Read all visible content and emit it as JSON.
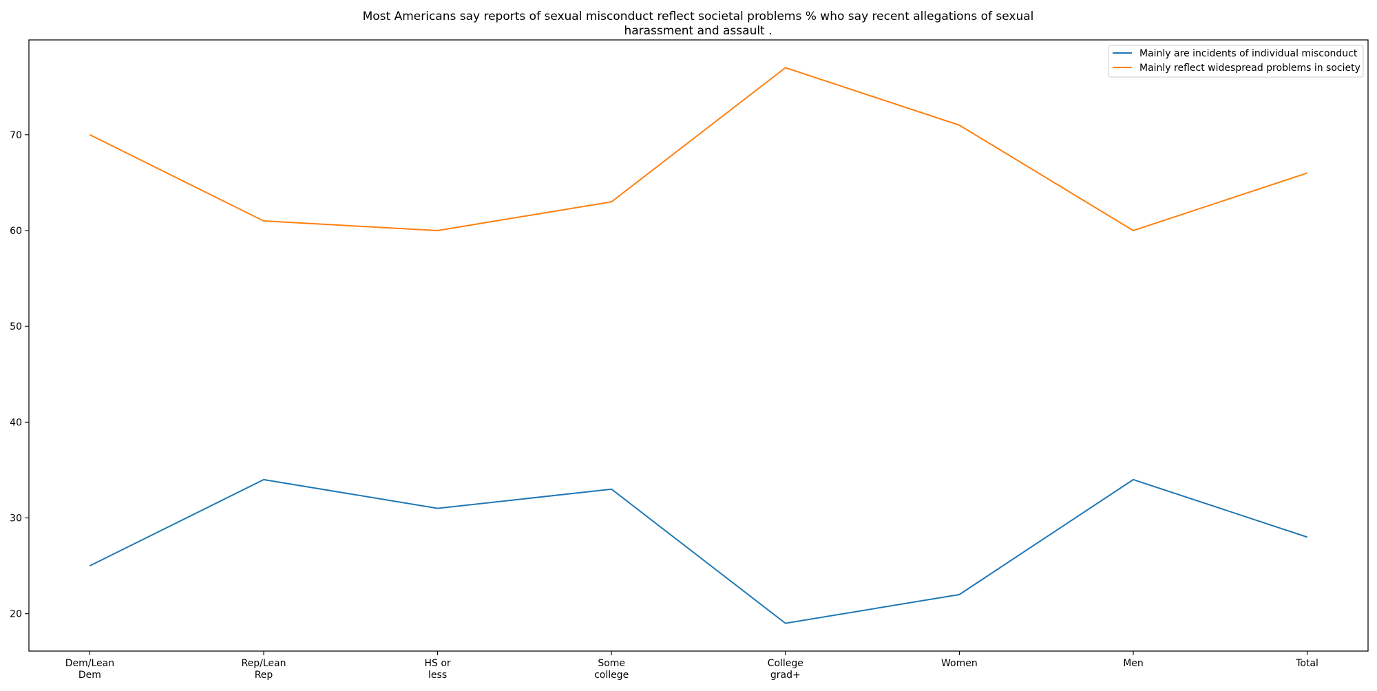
{
  "chart_data": {
    "type": "line",
    "title_lines": [
      "Most Americans say reports of sexual misconduct reflect societal problems % who say recent allegations of sexual",
      "harassment and assault ."
    ],
    "categories": [
      [
        "Dem/Lean",
        "Dem"
      ],
      [
        "Rep/Lean",
        "Rep"
      ],
      [
        "HS or",
        "less"
      ],
      [
        "Some",
        "college"
      ],
      [
        "College",
        "grad+"
      ],
      [
        "Women"
      ],
      [
        "Men"
      ],
      [
        "Total"
      ]
    ],
    "series": [
      {
        "name": "Mainly are incidents of individual misconduct",
        "color": "#1f77b4",
        "values": [
          25,
          34,
          31,
          33,
          19,
          22,
          34,
          28
        ]
      },
      {
        "name": "Mainly reflect widespread problems in society",
        "color": "#ff7f0e",
        "values": [
          70,
          61,
          60,
          63,
          77,
          71,
          60,
          66
        ]
      }
    ],
    "yticks": [
      20,
      30,
      40,
      50,
      60,
      70
    ],
    "ylim": [
      16.1,
      79.9
    ],
    "xlabel": "",
    "ylabel": "",
    "grid": false,
    "legend_position": "upper right"
  }
}
